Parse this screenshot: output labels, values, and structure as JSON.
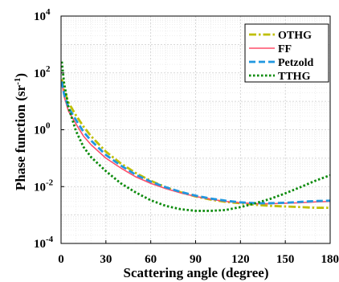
{
  "chart_data": {
    "type": "line",
    "xlabel": "Scattering angle (degree)",
    "ylabel": "Phase function (sr",
    "ylabel_sup": "-1",
    "ylabel_close": ")",
    "xlim": [
      0,
      180
    ],
    "ylim_log10": [
      -4,
      4
    ],
    "y_scale": "log",
    "grid": true,
    "minor_grid": true,
    "legend_position": "top-right",
    "x_ticks": [
      0,
      30,
      60,
      90,
      120,
      150,
      180
    ],
    "x_tick_labels": [
      "0",
      "30",
      "60",
      "90",
      "120",
      "150",
      "180"
    ],
    "y_ticks": [
      {
        "base": "10",
        "exp": "-4",
        "value": 0.0001
      },
      {
        "base": "10",
        "exp": "-2",
        "value": 0.01
      },
      {
        "base": "10",
        "exp": "0",
        "value": 1
      },
      {
        "base": "10",
        "exp": "2",
        "value": 100
      },
      {
        "base": "10",
        "exp": "4",
        "value": 10000
      }
    ],
    "series": [
      {
        "name": "OTHG",
        "color": "#bfbf00",
        "style": "dashdot",
        "x": [
          0.5,
          2,
          5,
          10,
          15,
          20,
          30,
          40,
          50,
          60,
          70,
          80,
          90,
          100,
          110,
          120,
          130,
          140,
          150,
          160,
          170,
          180
        ],
        "y": [
          60,
          25,
          9,
          3.2,
          1.3,
          0.6,
          0.17,
          0.065,
          0.03,
          0.016,
          0.0095,
          0.0063,
          0.0045,
          0.0035,
          0.0029,
          0.0026,
          0.0023,
          0.0021,
          0.002,
          0.0019,
          0.0018,
          0.0018
        ]
      },
      {
        "name": "FF",
        "color": "#ff4d6a",
        "style": "solid",
        "x": [
          0.5,
          2,
          5,
          10,
          15,
          20,
          30,
          40,
          50,
          60,
          70,
          80,
          90,
          100,
          110,
          120,
          130,
          140,
          150,
          160,
          170,
          180
        ],
        "y": [
          50,
          15,
          4.5,
          1.6,
          0.6,
          0.3,
          0.1,
          0.045,
          0.022,
          0.013,
          0.0085,
          0.006,
          0.0045,
          0.0036,
          0.003,
          0.0027,
          0.0025,
          0.0025,
          0.0026,
          0.0027,
          0.0029,
          0.003
        ]
      },
      {
        "name": "Petzold",
        "color": "#1f97e0",
        "style": "dashed",
        "x": [
          0.5,
          2,
          5,
          10,
          15,
          20,
          30,
          40,
          50,
          60,
          70,
          80,
          90,
          100,
          110,
          120,
          130,
          140,
          150,
          160,
          170,
          180
        ],
        "y": [
          50,
          18,
          6,
          2.2,
          0.85,
          0.42,
          0.13,
          0.055,
          0.026,
          0.015,
          0.0095,
          0.0065,
          0.0048,
          0.0038,
          0.0032,
          0.0028,
          0.0026,
          0.0026,
          0.0027,
          0.0029,
          0.0031,
          0.0032
        ]
      },
      {
        "name": "TTHG",
        "color": "#0a8a0a",
        "style": "dotted",
        "x": [
          0.5,
          2,
          5,
          10,
          15,
          20,
          30,
          40,
          50,
          60,
          70,
          80,
          90,
          100,
          110,
          120,
          130,
          140,
          150,
          160,
          170,
          180
        ],
        "y": [
          250,
          45,
          6,
          0.9,
          0.25,
          0.11,
          0.035,
          0.013,
          0.0062,
          0.0033,
          0.0021,
          0.0016,
          0.0014,
          0.0014,
          0.0015,
          0.0019,
          0.0026,
          0.0037,
          0.0058,
          0.0095,
          0.016,
          0.025
        ]
      }
    ]
  }
}
